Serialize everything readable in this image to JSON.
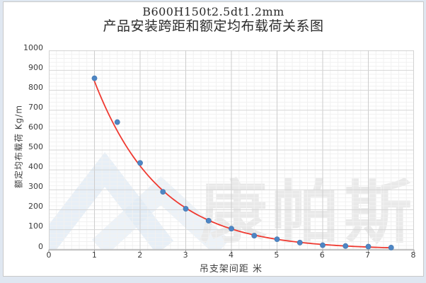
{
  "page": {
    "background_color": "#dfe7f1",
    "chart_background": "#ffffff",
    "chart_border_color": "#c9c9c9"
  },
  "title": {
    "line1": "B600H150t2.5dt1.2mm",
    "line2": "产品安装跨距和额定均布载荷关系图"
  },
  "watermark": {
    "text": "康帕斯",
    "logo_icon": "mountain-chevrons-logo",
    "text_color": "#e9e9e9",
    "logo_color": "#dfe9f4"
  },
  "chart_data": {
    "type": "scatter",
    "title": "B600H150t2.5dt1.2mm 产品安装跨距和额定均布载荷关系图",
    "xlabel": "吊支架间距  米",
    "ylabel": "额定均布载荷 Kg/m",
    "xlim": [
      0,
      8
    ],
    "ylim": [
      0,
      1000
    ],
    "x_ticks": [
      0,
      1,
      2,
      3,
      4,
      5,
      6,
      7,
      8
    ],
    "y_ticks": [
      0,
      100,
      200,
      300,
      400,
      500,
      600,
      700,
      800,
      900,
      1000
    ],
    "grid": {
      "major": true,
      "minor": true,
      "x_minor_divisions_per_unit": 6,
      "y_minor_step": 20,
      "major_color": "#d6d6d6",
      "minor_color": "#f1f1f1",
      "axis_line_color": "#9e9e9e",
      "plot_border_color": "#d2d2d2"
    },
    "legend": "none",
    "points": {
      "x": [
        1,
        1.5,
        2,
        2.5,
        3,
        3.5,
        4,
        4.5,
        5,
        5.5,
        6,
        6.5,
        7,
        7.5
      ],
      "y": [
        860,
        640,
        435,
        290,
        205,
        145,
        105,
        70,
        52,
        35,
        22,
        18,
        15,
        10
      ],
      "marker_color": "#4e86c4",
      "marker_edge_color": "#4173ad",
      "marker_radius": 3.6
    },
    "trendline": {
      "type": "exponential",
      "a": 1700,
      "b": -0.699,
      "x_start": 1,
      "x_end": 7.5,
      "color": "#ef3a31",
      "width": 1.8
    }
  }
}
